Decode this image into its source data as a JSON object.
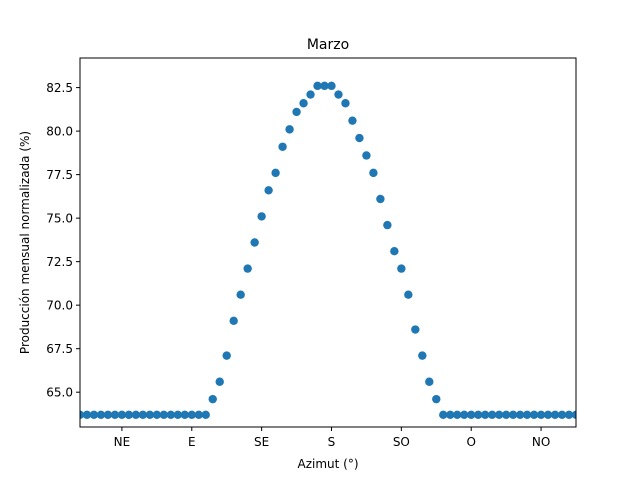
{
  "chart_data": {
    "type": "scatter",
    "title": "Marzo",
    "xlabel": "Azimut (°)",
    "ylabel": "Producción mensual normalizada (%)",
    "xlim": [
      0,
      71
    ],
    "ylim": [
      63.0,
      84.2
    ],
    "x_ticks": [
      {
        "pos": 6,
        "label": "NE"
      },
      {
        "pos": 16,
        "label": "E"
      },
      {
        "pos": 26,
        "label": "SE"
      },
      {
        "pos": 36,
        "label": "S"
      },
      {
        "pos": 46,
        "label": "SO"
      },
      {
        "pos": 56,
        "label": "O"
      },
      {
        "pos": 66,
        "label": "NO"
      }
    ],
    "y_ticks": [
      65.0,
      67.5,
      70.0,
      72.5,
      75.0,
      77.5,
      80.0,
      82.5
    ],
    "y_tick_labels": [
      "65.0",
      "67.5",
      "70.0",
      "72.5",
      "75.0",
      "77.5",
      "80.0",
      "82.5"
    ],
    "grid": false,
    "marker_color": "#1f77b4",
    "x": [
      0,
      1,
      2,
      3,
      4,
      5,
      6,
      7,
      8,
      9,
      10,
      11,
      12,
      13,
      14,
      15,
      16,
      17,
      18,
      19,
      20,
      21,
      22,
      23,
      24,
      25,
      26,
      27,
      28,
      29,
      30,
      31,
      32,
      33,
      34,
      35,
      36,
      37,
      38,
      39,
      40,
      41,
      42,
      43,
      44,
      45,
      46,
      47,
      48,
      49,
      50,
      51,
      52,
      53,
      54,
      55,
      56,
      57,
      58,
      59,
      60,
      61,
      62,
      63,
      64,
      65,
      66,
      67,
      68,
      69,
      70,
      71
    ],
    "y": [
      63.7,
      63.7,
      63.7,
      63.7,
      63.7,
      63.7,
      63.7,
      63.7,
      63.7,
      63.7,
      63.7,
      63.7,
      63.7,
      63.7,
      63.7,
      63.7,
      63.7,
      63.7,
      63.7,
      64.6,
      65.6,
      67.1,
      69.1,
      70.6,
      72.1,
      73.6,
      75.1,
      76.6,
      77.6,
      79.1,
      80.1,
      81.1,
      81.6,
      82.1,
      82.6,
      82.6,
      82.6,
      82.1,
      81.6,
      80.6,
      79.6,
      78.6,
      77.6,
      76.1,
      74.6,
      73.1,
      72.1,
      70.6,
      68.6,
      67.1,
      65.6,
      64.6,
      63.7,
      63.7,
      63.7,
      63.7,
      63.7,
      63.7,
      63.7,
      63.7,
      63.7,
      63.7,
      63.7,
      63.7,
      63.7,
      63.7,
      63.7,
      63.7,
      63.7,
      63.7,
      63.7,
      63.7
    ]
  }
}
